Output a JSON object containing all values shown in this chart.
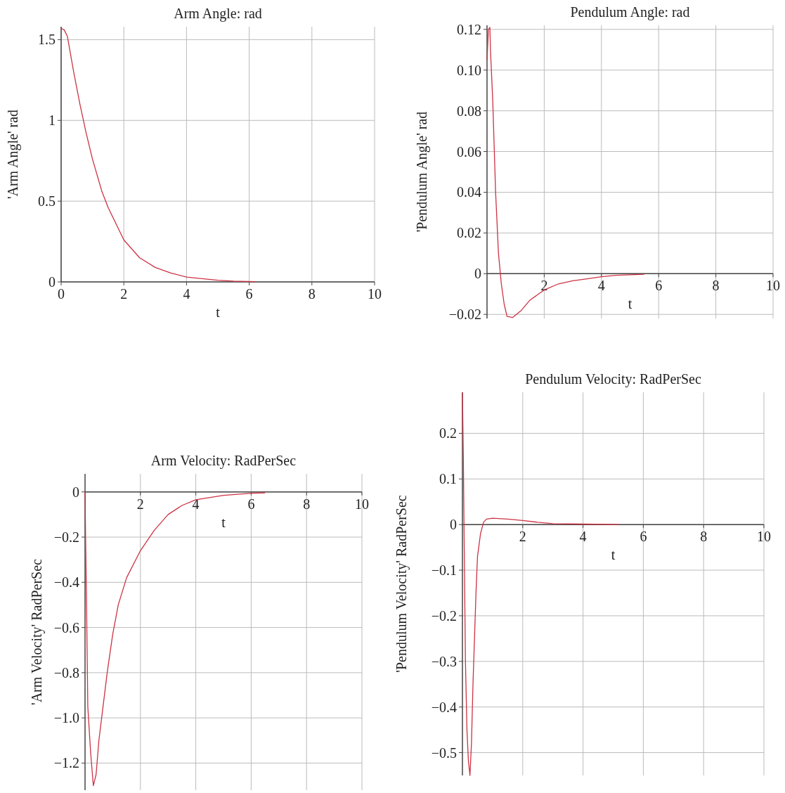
{
  "chart_data": [
    {
      "type": "line",
      "title": "Arm Angle: rad",
      "xlabel": "t",
      "ylabel": "'Arm Angle' rad",
      "grid": true,
      "marker": "none",
      "line_style": "solid",
      "xlim": [
        0,
        10
      ],
      "xticks": [
        0,
        2,
        4,
        6,
        8,
        10
      ],
      "ylim": [
        0,
        1.58
      ],
      "yticks": [
        0,
        0.5,
        1,
        1.5
      ],
      "series": [
        {
          "color": "#cc3344",
          "x": [
            0,
            0.1,
            0.2,
            0.4,
            0.6,
            0.8,
            1,
            1.3,
            1.5,
            2,
            2.5,
            3,
            3.5,
            4,
            4.5,
            5,
            5.5,
            6.2
          ],
          "values": [
            1.57,
            1.56,
            1.52,
            1.3,
            1.1,
            0.92,
            0.76,
            0.56,
            0.46,
            0.26,
            0.15,
            0.09,
            0.055,
            0.03,
            0.02,
            0.01,
            0.005,
            0.002
          ]
        }
      ]
    },
    {
      "type": "line",
      "title": "Pendulum Angle: rad",
      "xlabel": "t",
      "ylabel": "'Pendulum Angle' rad",
      "grid": true,
      "marker": "none",
      "line_style": "solid",
      "xlim": [
        0,
        10
      ],
      "xticks": [
        2,
        4,
        6,
        8,
        10
      ],
      "ylim": [
        -0.022,
        0.122
      ],
      "yticks": [
        {
          "value": -0.02,
          "label": "−0.02"
        },
        0,
        {
          "value": 0.02,
          "label": "0.02"
        },
        {
          "value": 0.04,
          "label": "0.04"
        },
        {
          "value": 0.06,
          "label": "0.06"
        },
        {
          "value": 0.08,
          "label": "0.08"
        },
        {
          "value": 0.1,
          "label": "0.10"
        },
        {
          "value": 0.12,
          "label": "0.12"
        }
      ],
      "series": [
        {
          "color": "#cc3344",
          "x": [
            0,
            0.05,
            0.1,
            0.12,
            0.2,
            0.3,
            0.4,
            0.5,
            0.6,
            0.7,
            0.9,
            1.2,
            1.5,
            2,
            2.5,
            3,
            3.5,
            4,
            4.5,
            5.5
          ],
          "values": [
            0.105,
            0.12,
            0.121,
            0.11,
            0.085,
            0.04,
            0.01,
            -0.005,
            -0.015,
            -0.021,
            -0.0215,
            -0.018,
            -0.013,
            -0.008,
            -0.005,
            -0.0035,
            -0.0025,
            -0.0015,
            -0.0008,
            -0.0003
          ]
        }
      ]
    },
    {
      "type": "line",
      "title": "Arm Velocity: RadPerSec",
      "xlabel": "t",
      "ylabel": "'Arm Velocity' RadPerSec",
      "grid": true,
      "marker": "none",
      "line_style": "solid",
      "xlim": [
        0,
        10
      ],
      "xticks": [
        2,
        4,
        6,
        8,
        10
      ],
      "ylim": [
        -1.32,
        0.08
      ],
      "yticks": [
        {
          "value": -1.2,
          "label": "−1.2"
        },
        {
          "value": -1,
          "label": "−1.0"
        },
        {
          "value": -0.8,
          "label": "−0.8"
        },
        {
          "value": -0.6,
          "label": "−0.6"
        },
        {
          "value": -0.4,
          "label": "−0.4"
        },
        {
          "value": -0.2,
          "label": "−0.2"
        },
        0
      ],
      "series": [
        {
          "color": "#cc3344",
          "x": [
            0,
            0.02,
            0.05,
            0.1,
            0.2,
            0.3,
            0.4,
            0.5,
            0.6,
            0.8,
            1,
            1.2,
            1.5,
            2,
            2.5,
            3,
            3.5,
            4,
            5,
            6,
            6.5
          ],
          "values": [
            0,
            -0.2,
            -0.45,
            -0.95,
            -1.15,
            -1.3,
            -1.25,
            -1.1,
            -1,
            -0.8,
            -0.63,
            -0.5,
            -0.38,
            -0.26,
            -0.17,
            -0.1,
            -0.06,
            -0.035,
            -0.015,
            -0.006,
            -0.004
          ]
        }
      ]
    },
    {
      "type": "line",
      "title": "Pendulum Velocity: RadPerSec",
      "xlabel": "t",
      "ylabel": "'Pendulum Velocity' RadPerSec",
      "grid": true,
      "marker": "none",
      "line_style": "solid",
      "xlim": [
        0,
        10
      ],
      "xticks": [
        2,
        4,
        6,
        8,
        10
      ],
      "ylim": [
        -0.55,
        0.29
      ],
      "yticks": [
        {
          "value": -0.5,
          "label": "−0.5"
        },
        {
          "value": -0.4,
          "label": "−0.4"
        },
        {
          "value": -0.3,
          "label": "−0.3"
        },
        {
          "value": -0.2,
          "label": "−0.2"
        },
        {
          "value": -0.1,
          "label": "−0.1"
        },
        0,
        0.1,
        0.2
      ],
      "series": [
        {
          "color": "#cc3344",
          "x": [
            0,
            0.03,
            0.06,
            0.1,
            0.15,
            0.2,
            0.25,
            0.3,
            0.35,
            0.4,
            0.45,
            0.5,
            0.6,
            0.7,
            0.8,
            1,
            1.5,
            2,
            2.5,
            3,
            4,
            5.2
          ],
          "values": [
            0.29,
            0.15,
            -0.05,
            -0.3,
            -0.45,
            -0.52,
            -0.55,
            -0.48,
            -0.35,
            -0.25,
            -0.15,
            -0.07,
            -0.02,
            0.005,
            0.012,
            0.014,
            0.012,
            0.009,
            0.005,
            0.002,
            0.001,
            0
          ]
        }
      ]
    }
  ]
}
